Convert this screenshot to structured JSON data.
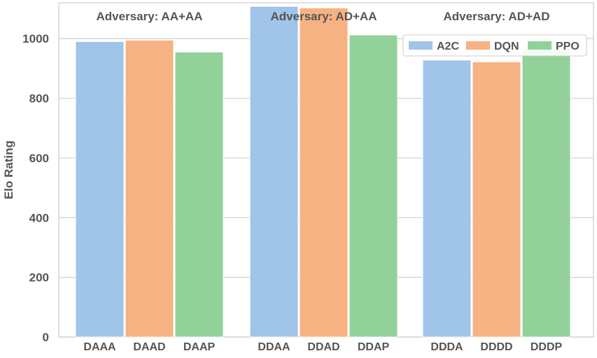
{
  "chart_data": {
    "type": "bar",
    "ylabel": "Elo Rating",
    "ylim": [
      0,
      1120
    ],
    "yticks": [
      0,
      200,
      400,
      600,
      800,
      1000
    ],
    "grid": true,
    "legend_placement": "top-right",
    "series": [
      {
        "name": "A2C",
        "color": "#a1c4e9"
      },
      {
        "name": "DQN",
        "color": "#f7b283"
      },
      {
        "name": "PPO",
        "color": "#93d19a"
      }
    ],
    "groups": [
      {
        "title": "Adversary: AA+AA",
        "categories": [
          "DAAA",
          "DAAD",
          "DAAP"
        ],
        "values": [
          990,
          995,
          955
        ]
      },
      {
        "title": "Adversary: AD+AA",
        "categories": [
          "DDAA",
          "DDAD",
          "DDAP"
        ],
        "values": [
          1108,
          1103,
          1012
        ]
      },
      {
        "title": "Adversary: AD+AD",
        "categories": [
          "DDDA",
          "DDDD",
          "DDDP"
        ],
        "values": [
          928,
          922,
          965
        ]
      }
    ]
  }
}
